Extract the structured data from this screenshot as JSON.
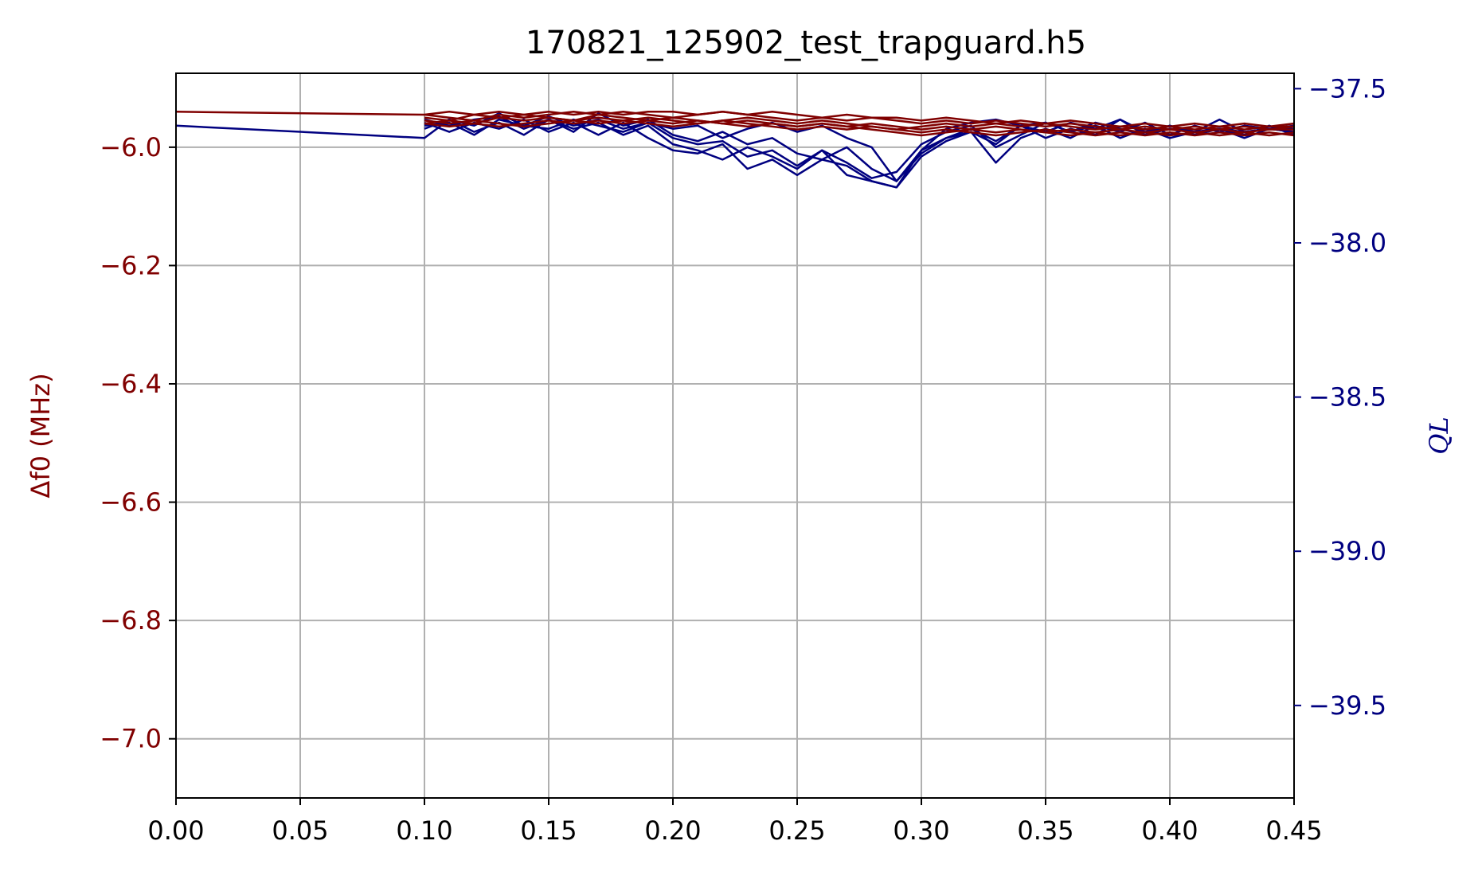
{
  "chart_data": {
    "type": "line",
    "title": "170821_125902_test_trapguard.h5",
    "xlabel": "",
    "ylabel_left": "Δf0 (MHz)",
    "ylabel_right": "QL",
    "xlim": [
      0.0,
      0.45
    ],
    "ylim_left": [
      -7.1,
      -5.875
    ],
    "ylim_right": [
      -39.8,
      -37.45
    ],
    "x_ticks": [
      "0.00",
      "0.05",
      "0.10",
      "0.15",
      "0.20",
      "0.25",
      "0.30",
      "0.35",
      "0.40",
      "0.45"
    ],
    "y_ticks_left": [
      "−6.0",
      "−6.2",
      "−6.4",
      "−6.6",
      "−6.8",
      "−7.0"
    ],
    "y_ticks_right": [
      "−37.5",
      "−38.0",
      "−38.5",
      "−39.0",
      "−39.5"
    ],
    "grid": true,
    "colors": {
      "left_axis": "#800000",
      "right_axis": "#000080"
    },
    "series_left": [
      {
        "x": [
          0.0,
          0.1,
          0.11,
          0.12,
          0.13,
          0.14,
          0.15,
          0.16,
          0.17,
          0.18,
          0.19,
          0.2,
          0.21,
          0.22,
          0.23,
          0.24,
          0.25,
          0.26,
          0.27,
          0.28,
          0.29,
          0.3,
          0.31,
          0.32,
          0.33,
          0.34,
          0.35,
          0.36,
          0.37,
          0.38,
          0.39,
          0.4,
          0.41,
          0.42,
          0.43,
          0.44,
          0.45
        ],
        "y": [
          -5.94,
          -5.945,
          -5.94,
          -5.945,
          -5.94,
          -5.945,
          -5.94,
          -5.945,
          -5.94,
          -5.945,
          -5.94,
          -5.94,
          -5.945,
          -5.94,
          -5.945,
          -5.94,
          -5.945,
          -5.95,
          -5.945,
          -5.95,
          -5.95,
          -5.955,
          -5.95,
          -5.955,
          -5.96,
          -5.955,
          -5.96,
          -5.955,
          -5.96,
          -5.965,
          -5.96,
          -5.965,
          -5.96,
          -5.965,
          -5.96,
          -5.965,
          -5.96
        ]
      },
      {
        "x": [
          0.1,
          0.11,
          0.12,
          0.13,
          0.14,
          0.15,
          0.16,
          0.17,
          0.18,
          0.19,
          0.2,
          0.21,
          0.22,
          0.23,
          0.24,
          0.25,
          0.26,
          0.27,
          0.28,
          0.29,
          0.3,
          0.31,
          0.32,
          0.33,
          0.34,
          0.35,
          0.36,
          0.37,
          0.38,
          0.39,
          0.4,
          0.41,
          0.42,
          0.43,
          0.44,
          0.45
        ],
        "y": [
          -5.96,
          -5.955,
          -5.96,
          -5.95,
          -5.955,
          -5.95,
          -5.955,
          -5.945,
          -5.95,
          -5.955,
          -5.95,
          -5.955,
          -5.96,
          -5.955,
          -5.96,
          -5.965,
          -5.96,
          -5.965,
          -5.96,
          -5.965,
          -5.97,
          -5.965,
          -5.97,
          -5.965,
          -5.97,
          -5.975,
          -5.97,
          -5.975,
          -5.97,
          -5.975,
          -5.97,
          -5.975,
          -5.97,
          -5.975,
          -5.97,
          -5.97
        ]
      },
      {
        "x": [
          0.1,
          0.11,
          0.12,
          0.13,
          0.14,
          0.15,
          0.16,
          0.17,
          0.18,
          0.19,
          0.2,
          0.21,
          0.22,
          0.23,
          0.24,
          0.25,
          0.26,
          0.27,
          0.28,
          0.29,
          0.3,
          0.31,
          0.32,
          0.33,
          0.34,
          0.35,
          0.36,
          0.37,
          0.38,
          0.39,
          0.4,
          0.41,
          0.42,
          0.43,
          0.44,
          0.45
        ],
        "y": [
          -5.95,
          -5.955,
          -5.945,
          -5.95,
          -5.945,
          -5.95,
          -5.955,
          -5.95,
          -5.955,
          -5.95,
          -5.955,
          -5.96,
          -5.955,
          -5.95,
          -5.955,
          -5.96,
          -5.955,
          -5.96,
          -5.965,
          -5.97,
          -5.965,
          -5.96,
          -5.965,
          -5.96,
          -5.965,
          -5.96,
          -5.965,
          -5.97,
          -5.965,
          -5.97,
          -5.965,
          -5.97,
          -5.965,
          -5.97,
          -5.965,
          -5.965
        ]
      },
      {
        "x": [
          0.1,
          0.11,
          0.12,
          0.13,
          0.14,
          0.15,
          0.16,
          0.17,
          0.18,
          0.19,
          0.2,
          0.21,
          0.22,
          0.23,
          0.24,
          0.25,
          0.26,
          0.27,
          0.28,
          0.29,
          0.3,
          0.31,
          0.32,
          0.33,
          0.34,
          0.35,
          0.36,
          0.37,
          0.38,
          0.39,
          0.4,
          0.41,
          0.42,
          0.43,
          0.44,
          0.45
        ],
        "y": [
          -5.955,
          -5.96,
          -5.955,
          -5.96,
          -5.965,
          -5.96,
          -5.955,
          -5.96,
          -5.955,
          -5.96,
          -5.965,
          -5.96,
          -5.955,
          -5.96,
          -5.965,
          -5.97,
          -5.965,
          -5.97,
          -5.965,
          -5.97,
          -5.975,
          -5.97,
          -5.975,
          -5.98,
          -5.975,
          -5.97,
          -5.975,
          -5.98,
          -5.975,
          -5.98,
          -5.975,
          -5.98,
          -5.975,
          -5.98,
          -5.975,
          -5.98
        ]
      },
      {
        "x": [
          0.1,
          0.11,
          0.12,
          0.13,
          0.14,
          0.15,
          0.16,
          0.17,
          0.18,
          0.19,
          0.2,
          0.21,
          0.22,
          0.23,
          0.24,
          0.25,
          0.26,
          0.27,
          0.28,
          0.29,
          0.3,
          0.31,
          0.32,
          0.33,
          0.34,
          0.35,
          0.36,
          0.37,
          0.38,
          0.39,
          0.4,
          0.41,
          0.42,
          0.43,
          0.44,
          0.45
        ],
        "y": [
          -5.945,
          -5.95,
          -5.955,
          -5.945,
          -5.95,
          -5.945,
          -5.94,
          -5.945,
          -5.94,
          -5.945,
          -5.95,
          -5.945,
          -5.94,
          -5.945,
          -5.95,
          -5.955,
          -5.95,
          -5.955,
          -5.95,
          -5.955,
          -5.96,
          -5.955,
          -5.96,
          -5.955,
          -5.96,
          -5.965,
          -5.96,
          -5.965,
          -5.97,
          -5.965,
          -5.97,
          -5.965,
          -5.97,
          -5.965,
          -5.97,
          -5.965
        ]
      },
      {
        "x": [
          0.1,
          0.11,
          0.12,
          0.13,
          0.14,
          0.15,
          0.16,
          0.17,
          0.18,
          0.19,
          0.2,
          0.21,
          0.22,
          0.23,
          0.24,
          0.25,
          0.26,
          0.27,
          0.28,
          0.29,
          0.3,
          0.31,
          0.32,
          0.33,
          0.34,
          0.35,
          0.36,
          0.37,
          0.38,
          0.39,
          0.4,
          0.41,
          0.42,
          0.43,
          0.44,
          0.45
        ],
        "y": [
          -5.96,
          -5.965,
          -5.96,
          -5.965,
          -5.96,
          -5.955,
          -5.96,
          -5.955,
          -5.96,
          -5.955,
          -5.96,
          -5.955,
          -5.96,
          -5.965,
          -5.96,
          -5.965,
          -5.96,
          -5.965,
          -5.97,
          -5.975,
          -5.98,
          -5.975,
          -5.97,
          -5.975,
          -5.97,
          -5.975,
          -5.98,
          -5.975,
          -5.98,
          -5.975,
          -5.98,
          -5.975,
          -5.98,
          -5.975,
          -5.98,
          -5.975
        ]
      }
    ],
    "series_right": [
      {
        "x": [
          0.0,
          0.1,
          0.11,
          0.12,
          0.13,
          0.14,
          0.15,
          0.16,
          0.17,
          0.18,
          0.19,
          0.2,
          0.21,
          0.22,
          0.23,
          0.24,
          0.25,
          0.26,
          0.27,
          0.28,
          0.29,
          0.3,
          0.31,
          0.32,
          0.33,
          0.34,
          0.35,
          0.36,
          0.37,
          0.38,
          0.39,
          0.4,
          0.41,
          0.42,
          0.43,
          0.44,
          0.45
        ],
        "y": [
          -37.62,
          -37.66,
          -37.6,
          -37.62,
          -37.58,
          -37.62,
          -37.59,
          -37.62,
          -37.6,
          -37.63,
          -37.61,
          -37.66,
          -37.68,
          -37.67,
          -37.72,
          -37.7,
          -37.75,
          -37.7,
          -37.78,
          -37.8,
          -37.82,
          -37.7,
          -37.66,
          -37.63,
          -37.67,
          -37.62,
          -37.64,
          -37.61,
          -37.63,
          -37.6,
          -37.64,
          -37.62,
          -37.65,
          -37.63,
          -37.64,
          -37.63,
          -37.63
        ]
      },
      {
        "x": [
          0.1,
          0.11,
          0.12,
          0.13,
          0.14,
          0.15,
          0.16,
          0.17,
          0.18,
          0.19,
          0.2,
          0.21,
          0.22,
          0.23,
          0.24,
          0.25,
          0.26,
          0.27,
          0.28,
          0.29,
          0.3,
          0.31,
          0.32,
          0.33,
          0.34,
          0.35,
          0.36,
          0.37,
          0.38,
          0.39,
          0.4,
          0.41,
          0.42,
          0.43,
          0.44,
          0.45
        ],
        "y": [
          -37.6,
          -37.62,
          -37.6,
          -37.59,
          -37.63,
          -37.6,
          -37.64,
          -37.58,
          -37.62,
          -37.6,
          -37.65,
          -37.67,
          -37.64,
          -37.68,
          -37.66,
          -37.71,
          -37.73,
          -37.69,
          -37.76,
          -37.8,
          -37.71,
          -37.66,
          -37.64,
          -37.68,
          -37.62,
          -37.66,
          -37.63,
          -37.65,
          -37.6,
          -37.65,
          -37.63,
          -37.64,
          -37.6,
          -37.64,
          -37.63,
          -37.64
        ]
      },
      {
        "x": [
          0.1,
          0.11,
          0.12,
          0.13,
          0.14,
          0.15,
          0.16,
          0.17,
          0.18,
          0.19,
          0.2,
          0.21,
          0.22,
          0.23,
          0.24,
          0.25,
          0.26,
          0.27,
          0.28,
          0.29,
          0.3,
          0.31,
          0.32,
          0.33,
          0.34,
          0.35,
          0.36,
          0.37,
          0.38,
          0.39,
          0.4,
          0.41,
          0.42,
          0.43,
          0.44,
          0.45
        ],
        "y": [
          -37.63,
          -37.6,
          -37.64,
          -37.61,
          -37.65,
          -37.6,
          -37.63,
          -37.61,
          -37.65,
          -37.62,
          -37.68,
          -37.7,
          -37.73,
          -37.69,
          -37.72,
          -37.76,
          -37.7,
          -37.74,
          -37.79,
          -37.77,
          -37.68,
          -37.64,
          -37.62,
          -37.69,
          -37.65,
          -37.61,
          -37.64,
          -37.62,
          -37.64,
          -37.61,
          -37.65,
          -37.62,
          -37.64,
          -37.62,
          -37.63,
          -37.62
        ]
      },
      {
        "x": [
          0.1,
          0.11,
          0.12,
          0.13,
          0.14,
          0.15,
          0.16,
          0.17,
          0.18,
          0.19,
          0.2,
          0.21,
          0.22,
          0.23,
          0.24,
          0.25,
          0.26,
          0.27,
          0.28,
          0.29,
          0.3,
          0.31,
          0.32,
          0.33,
          0.34,
          0.35,
          0.36,
          0.37,
          0.38,
          0.39,
          0.4,
          0.41,
          0.42,
          0.43,
          0.44,
          0.45
        ],
        "y": [
          -37.61,
          -37.64,
          -37.61,
          -37.63,
          -37.6,
          -37.64,
          -37.61,
          -37.65,
          -37.61,
          -37.66,
          -37.7,
          -37.71,
          -37.68,
          -37.76,
          -37.73,
          -37.78,
          -37.73,
          -37.75,
          -37.8,
          -37.82,
          -37.72,
          -37.67,
          -37.64,
          -37.74,
          -37.66,
          -37.63,
          -37.66,
          -37.62,
          -37.66,
          -37.63,
          -37.66,
          -37.64,
          -37.63,
          -37.65,
          -37.62,
          -37.65
        ]
      },
      {
        "x": [
          0.1,
          0.11,
          0.12,
          0.13,
          0.14,
          0.15,
          0.16,
          0.17,
          0.18,
          0.19,
          0.2,
          0.21,
          0.22,
          0.23,
          0.24,
          0.25,
          0.26,
          0.27,
          0.28,
          0.29,
          0.3,
          0.31,
          0.32,
          0.33,
          0.34,
          0.35,
          0.36,
          0.37,
          0.38,
          0.39,
          0.4,
          0.41,
          0.42,
          0.43,
          0.44,
          0.45
        ],
        "y": [
          -37.62,
          -37.61,
          -37.65,
          -37.6,
          -37.62,
          -37.63,
          -37.6,
          -37.62,
          -37.64,
          -37.61,
          -37.63,
          -37.62,
          -37.66,
          -37.63,
          -37.61,
          -37.64,
          -37.62,
          -37.66,
          -37.69,
          -37.8,
          -37.7,
          -37.63,
          -37.61,
          -37.6,
          -37.62,
          -37.61,
          -37.64,
          -37.61,
          -37.63,
          -37.65,
          -37.62,
          -37.64,
          -37.63,
          -37.66,
          -37.63,
          -37.64
        ]
      }
    ]
  }
}
